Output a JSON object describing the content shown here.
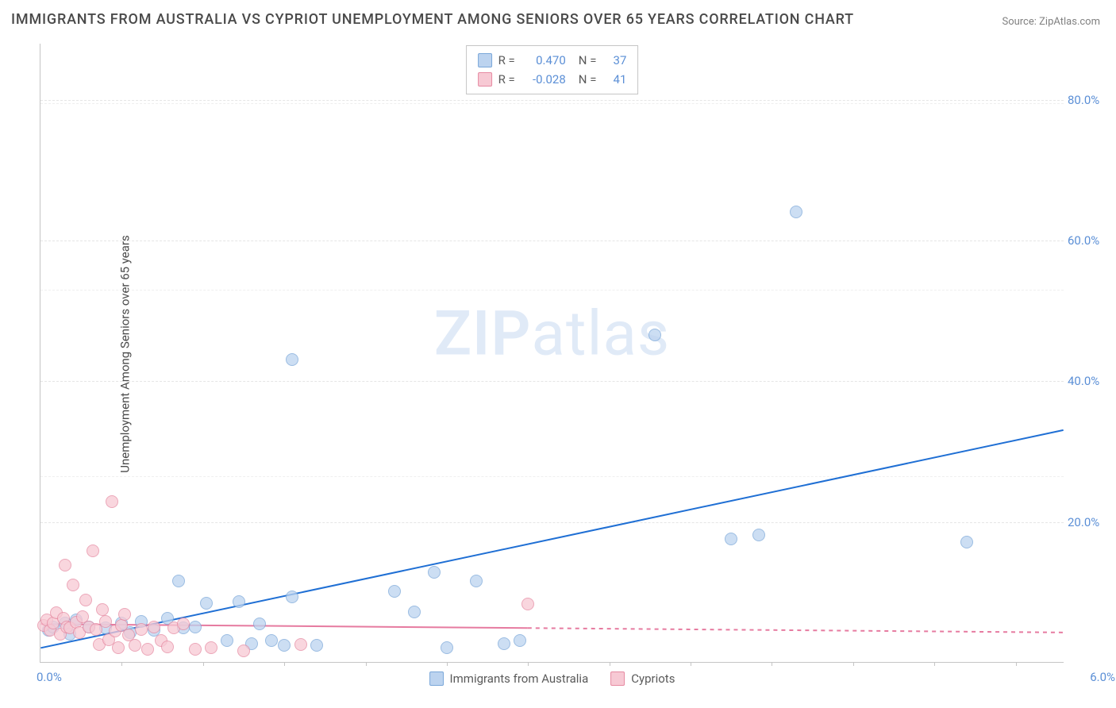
{
  "title": "IMMIGRANTS FROM AUSTRALIA VS CYPRIOT UNEMPLOYMENT AMONG SENIORS OVER 65 YEARS CORRELATION CHART",
  "source": "Source: ZipAtlas.com",
  "ylabel": "Unemployment Among Seniors over 65 years",
  "watermark_bold": "ZIP",
  "watermark_rest": "atlas",
  "chart": {
    "type": "scatter",
    "background_color": "#ffffff",
    "axis_color": "#c5c5c5",
    "grid_color": "#e5e5e5",
    "text_color": "#4a4a4a",
    "tick_label_color": "#5b8fd6",
    "xlim": [
      0,
      6.3
    ],
    "ylim": [
      0,
      88
    ],
    "xtick_labels": {
      "0": "0.0%",
      "6": "6.0%"
    },
    "ytick_labels": {
      "20": "20.0%",
      "40": "40.0%",
      "60": "60.0%",
      "80": "80.0%"
    },
    "ygrid_at": [
      20,
      40,
      60,
      80,
      26.5,
      53,
      79.5
    ],
    "x_minor_ticks": [
      0.5,
      1.0,
      1.5,
      2.0,
      2.5,
      3.0,
      3.5,
      4.0,
      4.5,
      5.0,
      5.5,
      6.0
    ],
    "point_radius": 8,
    "point_border_width": 1,
    "series": [
      {
        "name": "Immigrants from Australia",
        "fill": "#bcd3ef",
        "border": "#7aa7d9",
        "fill_opacity": 0.75,
        "correlation": {
          "R": "0.470",
          "N": "37"
        },
        "points": [
          [
            0.05,
            4.5
          ],
          [
            0.08,
            5.0
          ],
          [
            0.15,
            5.5
          ],
          [
            0.18,
            4.0
          ],
          [
            0.22,
            6.0
          ],
          [
            0.3,
            5.0
          ],
          [
            0.4,
            4.8
          ],
          [
            0.5,
            5.5
          ],
          [
            0.55,
            4.2
          ],
          [
            0.62,
            5.8
          ],
          [
            0.7,
            4.5
          ],
          [
            0.78,
            6.2
          ],
          [
            0.85,
            11.5
          ],
          [
            0.88,
            4.8
          ],
          [
            0.95,
            5.0
          ],
          [
            1.02,
            8.3
          ],
          [
            1.15,
            3.0
          ],
          [
            1.22,
            8.6
          ],
          [
            1.3,
            2.6
          ],
          [
            1.35,
            5.4
          ],
          [
            1.42,
            3.0
          ],
          [
            1.5,
            2.4
          ],
          [
            1.55,
            9.2
          ],
          [
            1.55,
            43.0
          ],
          [
            1.7,
            2.4
          ],
          [
            2.18,
            10.0
          ],
          [
            2.3,
            7.1
          ],
          [
            2.42,
            12.7
          ],
          [
            2.5,
            2.0
          ],
          [
            2.68,
            11.5
          ],
          [
            2.85,
            2.6
          ],
          [
            2.95,
            3.0
          ],
          [
            3.78,
            46.5
          ],
          [
            4.25,
            17.5
          ],
          [
            4.42,
            18.1
          ],
          [
            4.65,
            64.0
          ],
          [
            5.7,
            17.0
          ]
        ],
        "trendline": {
          "x1": 0.0,
          "y1": 2.0,
          "x2": 6.3,
          "y2": 33.0,
          "color": "#1f6fd4",
          "width": 2,
          "solid_until_x": 6.3,
          "dash": ""
        }
      },
      {
        "name": "Cypriots",
        "fill": "#f7c9d4",
        "border": "#e68aa2",
        "fill_opacity": 0.75,
        "correlation": {
          "R": "-0.028",
          "N": "41"
        },
        "points": [
          [
            0.02,
            5.2
          ],
          [
            0.04,
            6.0
          ],
          [
            0.06,
            4.5
          ],
          [
            0.08,
            5.5
          ],
          [
            0.1,
            7.0
          ],
          [
            0.12,
            4.0
          ],
          [
            0.14,
            6.2
          ],
          [
            0.15,
            13.8
          ],
          [
            0.16,
            5.0
          ],
          [
            0.18,
            4.8
          ],
          [
            0.2,
            11.0
          ],
          [
            0.22,
            5.6
          ],
          [
            0.24,
            4.2
          ],
          [
            0.26,
            6.4
          ],
          [
            0.28,
            8.8
          ],
          [
            0.3,
            5.0
          ],
          [
            0.32,
            15.8
          ],
          [
            0.34,
            4.6
          ],
          [
            0.36,
            2.5
          ],
          [
            0.38,
            7.5
          ],
          [
            0.4,
            5.8
          ],
          [
            0.42,
            3.2
          ],
          [
            0.44,
            22.8
          ],
          [
            0.46,
            4.4
          ],
          [
            0.48,
            2.0
          ],
          [
            0.5,
            5.2
          ],
          [
            0.52,
            6.8
          ],
          [
            0.54,
            3.8
          ],
          [
            0.58,
            2.4
          ],
          [
            0.62,
            4.6
          ],
          [
            0.66,
            1.8
          ],
          [
            0.7,
            5.0
          ],
          [
            0.74,
            3.0
          ],
          [
            0.78,
            2.2
          ],
          [
            0.82,
            4.8
          ],
          [
            0.88,
            5.4
          ],
          [
            0.95,
            1.8
          ],
          [
            1.05,
            2.0
          ],
          [
            1.25,
            1.6
          ],
          [
            1.6,
            2.5
          ],
          [
            3.0,
            8.2
          ]
        ],
        "trendline": {
          "x1": 0.0,
          "y1": 5.4,
          "x2": 6.3,
          "y2": 4.2,
          "color": "#e67ba0",
          "width": 2,
          "solid_until_x": 3.0,
          "dash": "5,5"
        }
      }
    ],
    "legend": [
      {
        "label": "Immigrants from Australia",
        "fill": "#bcd3ef",
        "border": "#7aa7d9"
      },
      {
        "label": "Cypriots",
        "fill": "#f7c9d4",
        "border": "#e68aa2"
      }
    ]
  }
}
